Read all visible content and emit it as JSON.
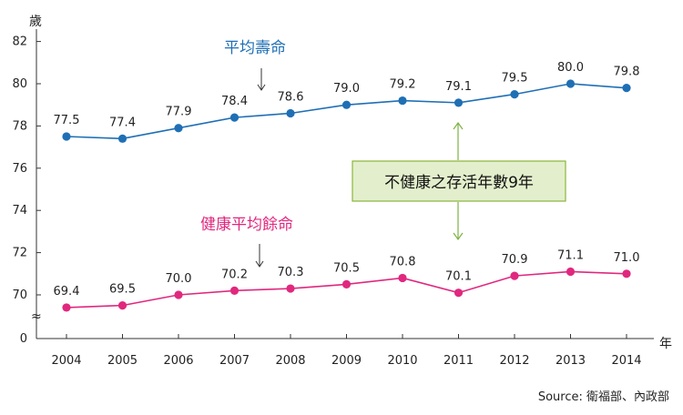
{
  "chart_data": {
    "type": "line",
    "x": [
      "2004",
      "2005",
      "2006",
      "2007",
      "2008",
      "2009",
      "2010",
      "2011",
      "2012",
      "2013",
      "2014"
    ],
    "xunit": "年",
    "yunit": "歲",
    "yticks": [
      "82",
      "80",
      "78",
      "76",
      "74",
      "72",
      "70",
      "0"
    ],
    "ylim": [
      69,
      82
    ],
    "axis_break": "≈",
    "grid": false,
    "series": [
      {
        "name": "平均壽命",
        "color": "#1f6fb5",
        "values": [
          77.5,
          77.4,
          77.9,
          78.4,
          78.6,
          79.0,
          79.2,
          79.1,
          79.5,
          80.0,
          79.8
        ],
        "labels": [
          "77.5",
          "77.4",
          "77.9",
          "78.4",
          "78.6",
          "79.0",
          "79.2",
          "79.1",
          "79.5",
          "80.0",
          "79.8"
        ]
      },
      {
        "name": "健康平均餘命",
        "color": "#e0287e",
        "values": [
          69.4,
          69.5,
          70.0,
          70.2,
          70.3,
          70.5,
          70.8,
          70.1,
          70.9,
          71.1,
          71.0
        ],
        "labels": [
          "69.4",
          "69.5",
          "70.0",
          "70.2",
          "70.3",
          "70.5",
          "70.8",
          "70.1",
          "70.9",
          "71.1",
          "71.0"
        ]
      }
    ],
    "annotation": {
      "text": "不健康之存活年數9年",
      "box_fill": "#e3efcc",
      "box_stroke": "#8bb43a",
      "arrow_color": "#7cb342"
    },
    "source": "Source: 衛福部、內政部"
  }
}
